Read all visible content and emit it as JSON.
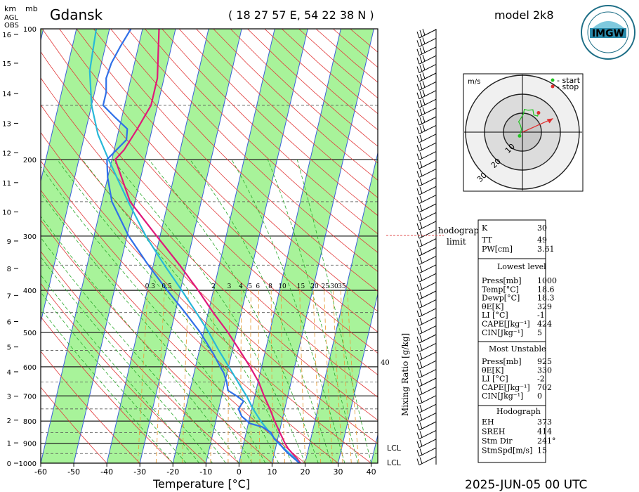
{
  "header": {
    "station": "Gdansk",
    "coords": "( 18 27 57  E,  54 22 38  N )",
    "model": "model 2k8",
    "datetime": "2025-JUN-05   00 UTC",
    "logo_text": "IMGW",
    "logo_ring_text": "INSTYTUT METEOROLOGII I GOSPODARKI WODNEJ · PAŃSTWOWY INSTYTUT BADAWCZY"
  },
  "axes": {
    "km_label": "km",
    "mb_label": "mb",
    "agl_label": [
      "AGL",
      "OBS"
    ],
    "xlabel": "Temperature [°C]",
    "mixing_label": "Mixing Ratio [g/kg]"
  },
  "hodograph": {
    "unit": "m/s",
    "legend_start": "- start",
    "legend_stop": "- stop",
    "rings": [
      "10",
      "20",
      "30"
    ],
    "start_color": "#22c422",
    "stop_color": "#e03030",
    "trace": [
      [
        -1.5,
        -2.0
      ],
      [
        -0.5,
        1.5
      ],
      [
        -1.0,
        3.5
      ],
      [
        -2.0,
        5.5
      ],
      [
        -1.0,
        7.0
      ],
      [
        0.5,
        9.5
      ],
      [
        1.0,
        12.0
      ],
      [
        3.0,
        11.5
      ],
      [
        5.5,
        11.8
      ],
      [
        6.0,
        9.0
      ],
      [
        8.0,
        8.5
      ],
      [
        8.5,
        10.2
      ]
    ],
    "storm_vector": [
      8.5,
      4.5
    ]
  },
  "hodograph_limit_label": [
    "hodograph",
    "limit"
  ],
  "lcl_labels": [
    "LCL",
    "LCL"
  ],
  "indices": {
    "rows": [
      {
        "k": "K",
        "v": "30"
      },
      {
        "k": "TT",
        "v": "49"
      },
      {
        "k": "PW[cm]",
        "v": "3.61"
      }
    ]
  },
  "lowest_level": {
    "title": "Lowest level",
    "rows": [
      {
        "k": "Press[mb]",
        "v": "1000"
      },
      {
        "k": "Temp[°C]",
        "v": "18.6"
      },
      {
        "k": "Dewp[°C]",
        "v": "18.3"
      },
      {
        "k": "θE[K]",
        "v": "329"
      },
      {
        "k": "LI [°C]",
        "v": "-1"
      },
      {
        "k": "CAPE[Jkg⁻¹]",
        "v": "424"
      },
      {
        "k": "CIN[Jkg⁻¹]",
        "v": "5"
      }
    ]
  },
  "most_unstable": {
    "title": "Most Unstable",
    "rows": [
      {
        "k": "Press[mb]",
        "v": "925"
      },
      {
        "k": "θE[K]",
        "v": "330"
      },
      {
        "k": "LI [°C]",
        "v": "-2"
      },
      {
        "k": "CAPE[Jkg⁻¹]",
        "v": "702"
      },
      {
        "k": "CIN[Jkg⁻¹]",
        "v": "0"
      }
    ]
  },
  "hodograph_box": {
    "title": "Hodograph",
    "rows": [
      {
        "k": "EH",
        "v": "373"
      },
      {
        "k": "SREH",
        "v": "414"
      },
      {
        "k": "Stm Dir",
        "v": "241°"
      },
      {
        "k": "StmSpd[m/s]",
        "v": "15"
      }
    ]
  },
  "chart_data": {
    "type": "line",
    "title": "Gdansk",
    "xlabel": "Temperature [°C]",
    "ylabel": "mb",
    "x_ticks": [
      "-60",
      "-50",
      "-40",
      "-30",
      "-20",
      "-10",
      "0",
      "10",
      "20",
      "30",
      "40"
    ],
    "xlim": [
      -60,
      42
    ],
    "pressure_levels": [
      100,
      200,
      300,
      400,
      500,
      600,
      700,
      800,
      900,
      1000
    ],
    "km_ticks": [
      "0",
      "1",
      "2",
      "3",
      "4",
      "5",
      "6",
      "7",
      "8",
      "9",
      "10",
      "11",
      "12",
      "13",
      "14",
      "15",
      "16"
    ],
    "km_pressures": [
      1000,
      898,
      796,
      701,
      616,
      540,
      472,
      411,
      356,
      308,
      264,
      226,
      193,
      165,
      141,
      120,
      103
    ],
    "mixing_ratio_labels": [
      "0.3",
      "0.5",
      "2",
      "3",
      "4",
      "5",
      "6",
      "8",
      "10",
      "15",
      "20",
      "25",
      "30",
      "35"
    ],
    "mixing_ratio_40_label": "40",
    "series": [
      {
        "name": "",
        "color": "#e0197a",
        "p": [
          1000,
          975,
          950,
          925,
          900,
          850,
          800,
          750,
          700,
          650,
          600,
          550,
          500,
          450,
          400,
          350,
          300,
          250,
          200,
          190,
          170,
          150,
          130,
          100
        ],
        "t": [
          18.6,
          17.2,
          15.5,
          13.8,
          12.5,
          10.2,
          7.8,
          5.5,
          2.8,
          0.2,
          -3.5,
          -7.8,
          -12.6,
          -18.5,
          -24.6,
          -32.0,
          -41.0,
          -51.5,
          -59.0,
          -57.0,
          -54.5,
          -52.0,
          -52.0,
          -55.0
        ]
      },
      {
        "name": "",
        "color": "#28b8d8",
        "p": [
          1000,
          975,
          950,
          925,
          900,
          850,
          800,
          750,
          700,
          650,
          600,
          550,
          500,
          450,
          400,
          350,
          300,
          250,
          200,
          175,
          150,
          125,
          100
        ],
        "t": [
          18.3,
          16.7,
          14.6,
          12.6,
          10.5,
          7.1,
          3.6,
          0.4,
          -2.5,
          -6.1,
          -9.9,
          -14.1,
          -18.4,
          -23.6,
          -29.6,
          -36.6,
          -44.3,
          -52.1,
          -61.0,
          -66.0,
          -70.0,
          -73.0,
          -74.0
        ]
      },
      {
        "name": "",
        "color": "#3070e8",
        "p": [
          1000,
          975,
          950,
          925,
          900,
          880,
          850,
          825,
          810,
          800,
          780,
          750,
          720,
          700,
          680,
          650,
          620,
          600,
          560,
          500,
          450,
          400,
          350,
          300,
          250,
          220,
          200,
          180,
          170,
          160,
          150,
          140,
          130,
          120,
          110,
          100
        ],
        "t": [
          18.3,
          16.3,
          14.2,
          12.4,
          10.8,
          9.0,
          7.5,
          4.5,
          0.5,
          -0.5,
          -2.5,
          -4.0,
          -3.0,
          -5.5,
          -8.5,
          -9.5,
          -11.0,
          -12.5,
          -15.5,
          -21.0,
          -27.0,
          -34.0,
          -41.5,
          -49.5,
          -57.0,
          -60.0,
          -61.5,
          -57.0,
          -57.5,
          -62.0,
          -66.5,
          -66.5,
          -67.5,
          -67.0,
          -65.5,
          -63.5
        ]
      }
    ]
  }
}
